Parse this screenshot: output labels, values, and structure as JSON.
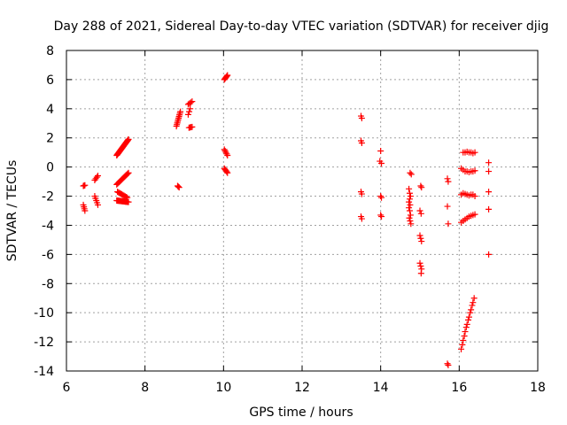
{
  "chart_data": {
    "type": "scatter",
    "title": "Day 288 of 2021, Sidereal Day-to-day VTEC variation (SDTVAR) for receiver djig",
    "xlabel": "GPS time / hours",
    "ylabel": "SDTVAR / TECUs",
    "xlim": [
      6,
      18
    ],
    "ylim": [
      -14,
      8
    ],
    "xticks": [
      6,
      8,
      10,
      12,
      14,
      16,
      18
    ],
    "yticks": [
      -14,
      -12,
      -10,
      -8,
      -6,
      -4,
      -2,
      0,
      2,
      4,
      6,
      8
    ],
    "grid": true,
    "legend": "none",
    "marker_color": "#ff0000",
    "marker": "plus",
    "segments": [
      {
        "x0": 6.43,
        "y0": -1.3,
        "x1": 6.47,
        "y1": -1.25,
        "n": 3
      },
      {
        "x0": 6.43,
        "y0": -2.6,
        "x1": 6.47,
        "y1": -3.0,
        "n": 4
      },
      {
        "x0": 6.72,
        "y0": -0.9,
        "x1": 6.8,
        "y1": -0.6,
        "n": 4
      },
      {
        "x0": 6.72,
        "y0": -2.0,
        "x1": 6.8,
        "y1": -2.6,
        "n": 5
      },
      {
        "x0": 7.28,
        "y0": 0.8,
        "x1": 7.58,
        "y1": 1.9,
        "n": 28
      },
      {
        "x0": 7.28,
        "y0": -1.2,
        "x1": 7.58,
        "y1": -0.4,
        "n": 14
      },
      {
        "x0": 7.3,
        "y0": -1.7,
        "x1": 7.55,
        "y1": -2.1,
        "n": 10
      },
      {
        "x0": 7.28,
        "y0": -2.3,
        "x1": 7.58,
        "y1": -2.4,
        "n": 20
      },
      {
        "x0": 8.8,
        "y0": 2.8,
        "x1": 8.9,
        "y1": 3.8,
        "n": 10
      },
      {
        "x0": 8.83,
        "y0": -1.3,
        "x1": 8.87,
        "y1": -1.4,
        "n": 3
      },
      {
        "x0": 9.1,
        "y0": 4.3,
        "x1": 9.2,
        "y1": 4.5,
        "n": 4
      },
      {
        "x0": 9.1,
        "y0": 3.6,
        "x1": 9.15,
        "y1": 4.0,
        "n": 3
      },
      {
        "x0": 9.12,
        "y0": 2.7,
        "x1": 9.2,
        "y1": 2.75,
        "n": 4
      },
      {
        "x0": 10.02,
        "y0": 6.0,
        "x1": 10.1,
        "y1": 6.3,
        "n": 6
      },
      {
        "x0": 10.02,
        "y0": 1.2,
        "x1": 10.1,
        "y1": 0.8,
        "n": 5
      },
      {
        "x0": 10.02,
        "y0": -0.1,
        "x1": 10.1,
        "y1": -0.4,
        "n": 5
      }
    ],
    "points": [
      [
        13.5,
        3.5
      ],
      [
        13.52,
        3.35
      ],
      [
        13.5,
        1.8
      ],
      [
        13.52,
        1.65
      ],
      [
        13.5,
        -1.7
      ],
      [
        13.52,
        -1.85
      ],
      [
        13.5,
        -3.4
      ],
      [
        13.52,
        -3.55
      ],
      [
        14.0,
        1.1
      ],
      [
        13.98,
        0.4
      ],
      [
        14.02,
        0.25
      ],
      [
        14.0,
        -2.0
      ],
      [
        14.02,
        -2.1
      ],
      [
        14.0,
        -3.3
      ],
      [
        14.02,
        -3.4
      ],
      [
        14.75,
        -0.4
      ],
      [
        14.78,
        -0.5
      ],
      [
        14.72,
        -1.5
      ],
      [
        14.74,
        -1.8
      ],
      [
        14.76,
        -2.0
      ],
      [
        14.74,
        -2.2
      ],
      [
        14.72,
        -2.4
      ],
      [
        14.75,
        -2.6
      ],
      [
        14.72,
        -2.8
      ],
      [
        14.74,
        -3.0
      ],
      [
        14.76,
        -3.3
      ],
      [
        14.73,
        -3.5
      ],
      [
        14.75,
        -3.7
      ],
      [
        14.77,
        -3.9
      ],
      [
        15.02,
        -1.3
      ],
      [
        15.04,
        -1.4
      ],
      [
        15.0,
        -3.0
      ],
      [
        15.03,
        -3.2
      ],
      [
        15.0,
        -4.7
      ],
      [
        15.02,
        -4.9
      ],
      [
        15.04,
        -5.1
      ],
      [
        15.0,
        -6.6
      ],
      [
        15.02,
        -6.8
      ],
      [
        15.04,
        -7.0
      ],
      [
        15.03,
        -7.3
      ],
      [
        15.7,
        -0.8
      ],
      [
        15.72,
        -1.0
      ],
      [
        15.7,
        -2.7
      ],
      [
        15.72,
        -3.9
      ],
      [
        15.7,
        -13.5
      ],
      [
        15.72,
        -13.6
      ],
      [
        16.1,
        1.0
      ],
      [
        16.15,
        1.0
      ],
      [
        16.2,
        1.05
      ],
      [
        16.25,
        1.0
      ],
      [
        16.3,
        1.0
      ],
      [
        16.35,
        0.95
      ],
      [
        16.4,
        1.0
      ],
      [
        16.05,
        -0.1
      ],
      [
        16.1,
        -0.2
      ],
      [
        16.15,
        -0.3
      ],
      [
        16.2,
        -0.3
      ],
      [
        16.25,
        -0.35
      ],
      [
        16.3,
        -0.3
      ],
      [
        16.35,
        -0.3
      ],
      [
        16.4,
        -0.25
      ],
      [
        16.05,
        -1.9
      ],
      [
        16.1,
        -1.8
      ],
      [
        16.15,
        -1.85
      ],
      [
        16.2,
        -1.9
      ],
      [
        16.25,
        -1.95
      ],
      [
        16.3,
        -1.9
      ],
      [
        16.35,
        -1.9
      ],
      [
        16.4,
        -2.0
      ],
      [
        16.05,
        -3.8
      ],
      [
        16.1,
        -3.7
      ],
      [
        16.15,
        -3.6
      ],
      [
        16.2,
        -3.5
      ],
      [
        16.25,
        -3.4
      ],
      [
        16.3,
        -3.35
      ],
      [
        16.35,
        -3.3
      ],
      [
        16.4,
        -3.25
      ],
      [
        16.05,
        -12.5
      ],
      [
        16.08,
        -12.2
      ],
      [
        16.1,
        -11.9
      ],
      [
        16.13,
        -11.6
      ],
      [
        16.15,
        -11.3
      ],
      [
        16.18,
        -11.0
      ],
      [
        16.2,
        -10.8
      ],
      [
        16.23,
        -10.5
      ],
      [
        16.25,
        -10.3
      ],
      [
        16.28,
        -10.0
      ],
      [
        16.3,
        -9.8
      ],
      [
        16.33,
        -9.5
      ],
      [
        16.35,
        -9.3
      ],
      [
        16.38,
        -9.0
      ],
      [
        16.75,
        0.3
      ],
      [
        16.75,
        -0.3
      ],
      [
        16.75,
        -1.7
      ],
      [
        16.75,
        -2.9
      ],
      [
        16.75,
        -6.0
      ]
    ]
  }
}
